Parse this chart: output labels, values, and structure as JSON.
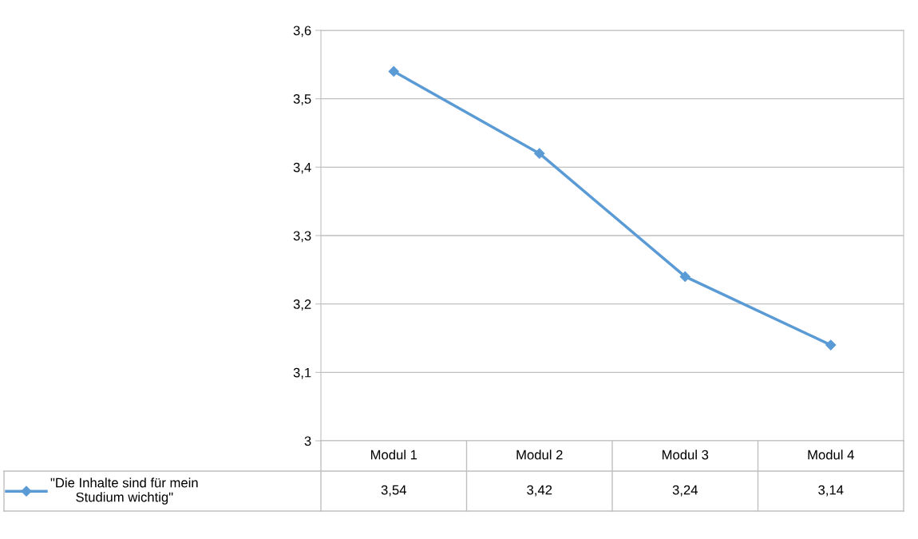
{
  "chart_data": {
    "type": "line",
    "categories": [
      "Modul 1",
      "Modul 2",
      "Modul 3",
      "Modul 4"
    ],
    "series": [
      {
        "name": "\"Die Inhalte sind für mein Studium wichtig\"",
        "color": "#5b9bd5",
        "values": [
          3.54,
          3.42,
          3.24,
          3.14
        ],
        "value_labels": [
          "3,54",
          "3,42",
          "3,24",
          "3,14"
        ]
      }
    ],
    "ylim": [
      3,
      3.6
    ],
    "yticks": [
      {
        "value": 3,
        "label": "3"
      },
      {
        "value": 3.1,
        "label": "3,1"
      },
      {
        "value": 3.2,
        "label": "3,2"
      },
      {
        "value": 3.3,
        "label": "3,3"
      },
      {
        "value": 3.4,
        "label": "3,4"
      },
      {
        "value": 3.5,
        "label": "3,5"
      },
      {
        "value": 3.6,
        "label": "3,6"
      }
    ],
    "grid": "y",
    "marker": "diamond",
    "line_style": "solid",
    "legend": "bottom"
  }
}
